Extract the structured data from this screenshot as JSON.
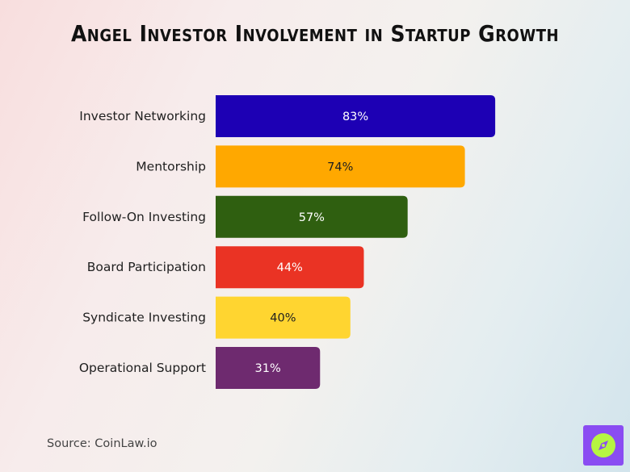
{
  "chart_data": {
    "type": "bar",
    "orientation": "horizontal",
    "title": "Angel Investor Involvement in Startup Growth",
    "categories": [
      "Investor Networking",
      "Mentorship",
      "Follow-On Investing",
      "Board Participation",
      "Syndicate Investing",
      "Operational Support"
    ],
    "values": [
      83,
      74,
      57,
      44,
      40,
      31
    ],
    "value_labels": [
      "83%",
      "74%",
      "57%",
      "44%",
      "40%",
      "31%"
    ],
    "bar_colors": [
      "#1d00b4",
      "#ffa800",
      "#2f5f10",
      "#ea3324",
      "#ffd530",
      "#6e2a6f"
    ],
    "label_colors": [
      "#ffffff",
      "#1f1f1f",
      "#ffffff",
      "#ffffff",
      "#1f1f1f",
      "#ffffff"
    ],
    "xlim": [
      0,
      100
    ],
    "grid": false,
    "legend": "none"
  },
  "source": "Source: CoinLaw.io",
  "brand": {
    "icon": "compass-icon",
    "color": "#8a4cf2",
    "accent": "#b6f542"
  }
}
